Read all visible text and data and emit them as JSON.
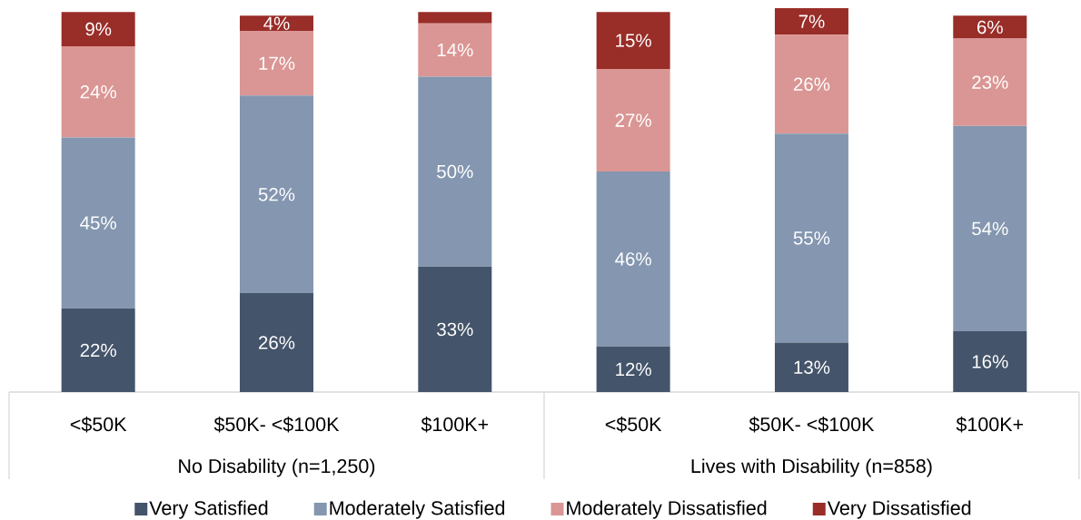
{
  "chart_data": {
    "type": "bar",
    "stacked": true,
    "categories": [
      "<$50K",
      "$50K- <$100K",
      "$100K+",
      "<$50K",
      "$50K- <$100K",
      "$100K+"
    ],
    "annotations": [
      "No Disability (n=1,250)",
      "Lives with Disability (n=858)"
    ],
    "series": [
      {
        "name": "Very Satisfied",
        "color": "#44546a",
        "values": [
          22,
          26,
          33,
          12,
          13,
          16
        ],
        "value_labels": [
          "22%",
          "26%",
          "33%",
          "12%",
          "13%",
          "16%"
        ]
      },
      {
        "name": "Moderately Satisfied",
        "color": "#8496b0",
        "values": [
          45,
          52,
          50,
          46,
          55,
          54
        ],
        "value_labels": [
          "45%",
          "52%",
          "50%",
          "46%",
          "55%",
          "54%"
        ]
      },
      {
        "name": "Moderately Dissatisfied",
        "color": "#da9694",
        "values": [
          24,
          17,
          14,
          27,
          26,
          23
        ],
        "value_labels": [
          "24%",
          "17%",
          "14%",
          "27%",
          "26%",
          "23%"
        ]
      },
      {
        "name": "Very Dissatisfied",
        "color": "#992d28",
        "values": [
          9,
          4,
          3,
          15,
          7,
          6
        ],
        "value_labels": [
          "9%",
          "4%",
          null,
          "15%",
          "7%",
          "6%"
        ]
      }
    ],
    "legend": "bottom"
  }
}
